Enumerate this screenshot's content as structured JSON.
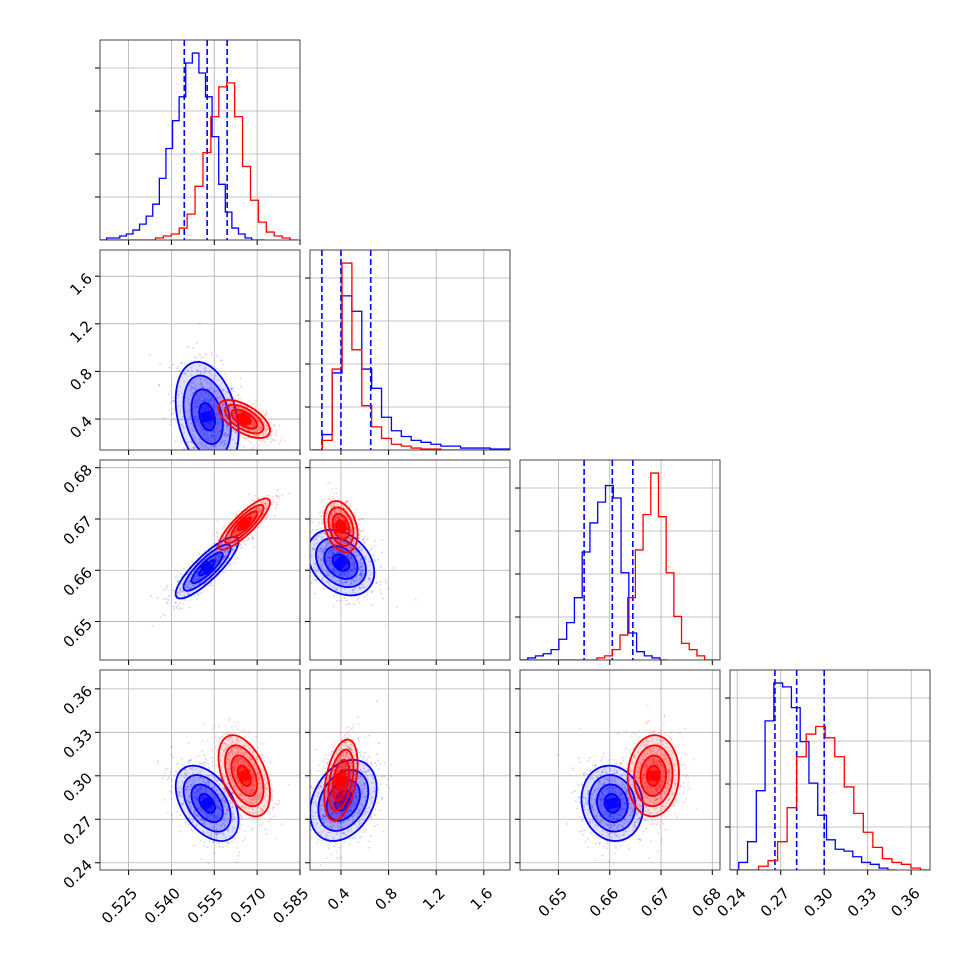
{
  "chart_data": {
    "type": "corner",
    "parameters": [
      {
        "id": "p1",
        "range": [
          0.515,
          0.585
        ],
        "ticks": [
          0.525,
          0.54,
          0.555,
          0.57,
          0.585
        ],
        "tick_labels": [
          "0.525",
          "0.540",
          "0.555",
          "0.570",
          "0.585"
        ]
      },
      {
        "id": "p2",
        "range": [
          0.14,
          1.82
        ],
        "ticks": [
          0.4,
          0.8,
          1.2,
          1.6
        ],
        "tick_labels": [
          "0.4",
          "0.8",
          "1.2",
          "1.6"
        ]
      },
      {
        "id": "p3",
        "range": [
          0.6425,
          0.6815
        ],
        "ticks": [
          0.65,
          0.66,
          0.67,
          0.68
        ],
        "tick_labels": [
          "0.65",
          "0.66",
          "0.67",
          "0.68"
        ]
      },
      {
        "id": "p4",
        "range": [
          0.235,
          0.373
        ],
        "ticks": [
          0.24,
          0.27,
          0.3,
          0.33,
          0.36
        ],
        "tick_labels": [
          "0.24",
          "0.27",
          "0.30",
          "0.33",
          "0.36"
        ]
      }
    ],
    "series": [
      {
        "color": "#0000ff",
        "quantiles": [
          [
            0.5445,
            0.5525,
            0.5595
          ],
          [
            0.24,
            0.4,
            0.65
          ],
          [
            0.655,
            0.6605,
            0.6645
          ],
          [
            0.266,
            0.281,
            0.3
          ]
        ],
        "hist": [
          {
            "edges": [
              0.515,
              0.5727
            ],
            "counts": [
              0,
              1,
              1,
              2,
              3,
              5,
              8,
              12,
              18,
              31,
              46,
              60,
              72,
              89,
              94,
              84,
              72,
              52,
              28,
              14,
              6,
              3,
              1,
              0,
              0
            ]
          },
          {
            "edges": [
              0.16,
              1.82
            ],
            "counts": [
              0,
              8,
              40,
              80,
              72,
              42,
              32,
              17,
              10,
              7,
              5,
              4,
              3,
              2,
              2,
              1,
              1,
              1,
              0.5,
              0.5
            ]
          },
          {
            "edges": [
              0.6425,
              0.6713
            ],
            "counts": [
              0,
              1,
              2,
              3,
              5,
              10,
              18,
              30,
              52,
              66,
              76,
              84,
              78,
              42,
              13,
              4,
              2,
              1,
              0
            ]
          },
          {
            "edges": [
              0.235,
              0.35
            ],
            "counts": [
              0,
              4,
              15,
              42,
              79,
              99,
              97,
              86,
              68,
              46,
              29,
              16,
              11,
              10,
              7,
              4,
              3,
              1,
              0
            ]
          }
        ],
        "pairs": [
          {
            "x": 0,
            "y": 1,
            "center": [
              0.5525,
              0.42
            ],
            "sigma": [
              0.0055,
              0.23
            ],
            "rho": -0.3
          },
          {
            "x": 0,
            "y": 2,
            "center": [
              0.5525,
              0.6605
            ],
            "sigma": [
              0.0055,
              0.003
            ],
            "rho": 0.85
          },
          {
            "x": 1,
            "y": 2,
            "center": [
              0.4,
              0.6615
            ],
            "sigma": [
              0.14,
              0.0032
            ],
            "rho": -0.3
          },
          {
            "x": 0,
            "y": 3,
            "center": [
              0.5525,
              0.281
            ],
            "sigma": [
              0.0055,
              0.013
            ],
            "rho": -0.45
          },
          {
            "x": 1,
            "y": 3,
            "center": [
              0.42,
              0.283
            ],
            "sigma": [
              0.14,
              0.014
            ],
            "rho": 0.3
          },
          {
            "x": 2,
            "y": 3,
            "center": [
              0.6605,
              0.281
            ],
            "sigma": [
              0.003,
              0.013
            ],
            "rho": -0.1
          }
        ]
      },
      {
        "color": "#ff0000",
        "quantiles": [],
        "hist": [
          {
            "edges": [
              0.515,
              0.5843
            ],
            "counts": [
              0,
              0,
              0,
              0,
              0,
              0,
              0,
              1,
              2,
              3,
              6,
              13,
              27,
              44,
              62,
              77,
              79,
              62,
              37,
              20,
              9,
              4,
              2,
              1,
              0
            ]
          },
          {
            "edges": [
              0.16,
              1.82
            ],
            "counts": [
              0,
              5,
              42,
              97,
              52,
              23,
              12,
              6,
              3,
              2,
              1,
              0.5,
              0.5,
              0,
              0,
              0,
              0,
              0,
              0,
              0
            ]
          },
          {
            "edges": [
              0.6425,
              0.6815
            ],
            "counts": [
              0,
              0,
              0,
              0,
              0,
              0,
              0,
              0,
              0,
              0,
              1,
              2,
              5,
              12,
              30,
              53,
              70,
              90,
              69,
              42,
              21,
              8,
              5,
              2,
              0,
              0
            ]
          },
          {
            "edges": [
              0.235,
              0.373
            ],
            "counts": [
              0,
              0,
              0,
              2,
              5,
              15,
              33,
              60,
              72,
              76,
              70,
              60,
              44,
              30,
              20,
              12,
              6,
              4,
              3,
              1,
              0
            ]
          }
        ],
        "pairs": [
          {
            "x": 0,
            "y": 1,
            "center": [
              0.5655,
              0.4
            ],
            "sigma": [
              0.0045,
              0.08
            ],
            "rho": -0.6
          },
          {
            "x": 0,
            "y": 2,
            "center": [
              0.5655,
              0.669
            ],
            "sigma": [
              0.0045,
              0.0025
            ],
            "rho": 0.85
          },
          {
            "x": 1,
            "y": 2,
            "center": [
              0.4,
              0.6685
            ],
            "sigma": [
              0.07,
              0.0025
            ],
            "rho": -0.3
          },
          {
            "x": 0,
            "y": 3,
            "center": [
              0.5655,
              0.3
            ],
            "sigma": [
              0.0045,
              0.014
            ],
            "rho": -0.45
          },
          {
            "x": 1,
            "y": 3,
            "center": [
              0.4,
              0.297
            ],
            "sigma": [
              0.07,
              0.014
            ],
            "rho": 0.4
          },
          {
            "x": 2,
            "y": 3,
            "center": [
              0.6685,
              0.3
            ],
            "sigma": [
              0.0025,
              0.014
            ],
            "rho": 0.05
          }
        ]
      }
    ],
    "contour_levels_sigma": [
      0.5,
      1.0,
      1.5,
      2.0
    ],
    "grid": true,
    "legend": "none"
  }
}
